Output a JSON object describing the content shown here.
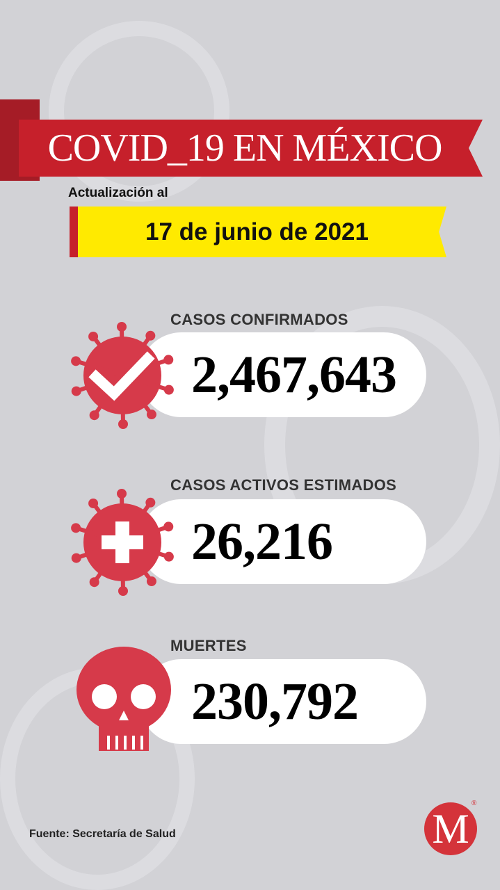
{
  "header": {
    "title": "COVID_19 EN MÉXICO",
    "update_label": "Actualización al",
    "date": "17 de junio de 2021"
  },
  "stats": [
    {
      "label": "CASOS CONFIRMADOS",
      "value": "2,467,643",
      "icon": "virus-check-icon"
    },
    {
      "label": "CASOS ACTIVOS ESTIMADOS",
      "value": "26,216",
      "icon": "virus-plus-icon"
    },
    {
      "label": "MUERTES",
      "value": "230,792",
      "icon": "skull-icon"
    }
  ],
  "footer": {
    "source": "Fuente: Secretaría de Salud",
    "logo_letter": "M",
    "logo_mark": "®"
  },
  "colors": {
    "background": "#d2d2d6",
    "ribbon_red": "#c6202b",
    "icon_red": "#d63a4a",
    "date_yellow": "#ffea00"
  }
}
